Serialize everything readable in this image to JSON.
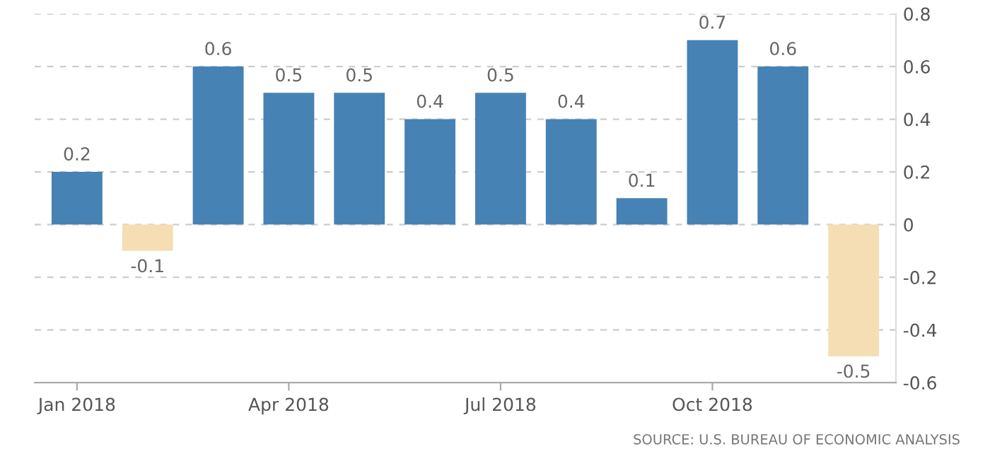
{
  "chart_data": {
    "type": "bar",
    "categories": [
      "Jan 2018",
      null,
      null,
      "Apr 2018",
      null,
      null,
      "Jul 2018",
      null,
      null,
      "Oct 2018",
      null,
      null
    ],
    "values": [
      0.2,
      -0.1,
      0.6,
      0.5,
      0.5,
      0.4,
      0.5,
      0.4,
      0.1,
      0.7,
      0.6,
      -0.5
    ],
    "colors": [
      "#4682b4",
      "#f5deb3",
      "#4682b4",
      "#4682b4",
      "#4682b4",
      "#4682b4",
      "#4682b4",
      "#4682b4",
      "#4682b4",
      "#4682b4",
      "#4682b4",
      "#f5deb3"
    ],
    "ylim": [
      -0.6,
      0.8
    ],
    "yticks": [
      -0.6,
      -0.4,
      -0.2,
      0,
      0.2,
      0.4,
      0.6,
      0.8
    ],
    "grid": "y",
    "data_labels": true,
    "annotations": [
      "SOURCE: U.S. BUREAU OF ECONOMIC ANALYSIS"
    ]
  }
}
